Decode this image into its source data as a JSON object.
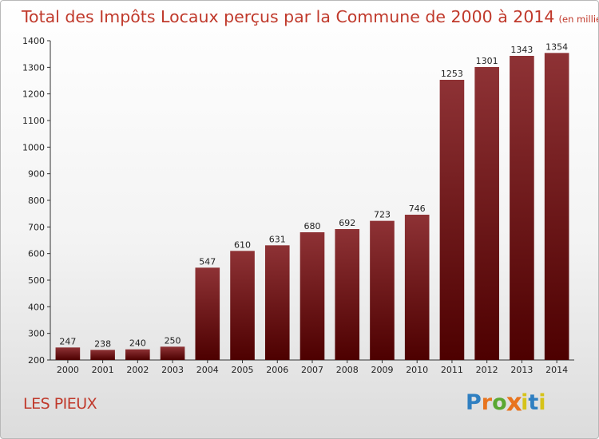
{
  "chart_data": {
    "type": "bar",
    "title": "Total des Impôts Locaux perçus par la Commune de 2000 à 2014",
    "subtitle": "(en milliers d'€)",
    "categories": [
      "2000",
      "2001",
      "2002",
      "2003",
      "2004",
      "2005",
      "2006",
      "2007",
      "2008",
      "2009",
      "2010",
      "2011",
      "2012",
      "2013",
      "2014"
    ],
    "values": [
      247,
      238,
      240,
      250,
      547,
      610,
      631,
      680,
      692,
      723,
      746,
      1253,
      1301,
      1343,
      1354
    ],
    "ylim": [
      200,
      1400
    ],
    "yticks": [
      200,
      300,
      400,
      500,
      600,
      700,
      800,
      900,
      1000,
      1100,
      1200,
      1300,
      1400
    ],
    "xlabel": "",
    "ylabel": "",
    "grid": false,
    "bar_color_top": "#8e3235",
    "bar_color_bottom": "#4d0000"
  },
  "commune_name": "LES PIEUX",
  "logo": {
    "letters": [
      "P",
      "r",
      "o",
      "x",
      "i",
      "t",
      "i"
    ],
    "colors": [
      "#2f7fc1",
      "#e8741e",
      "#5aa832",
      "#e8741e",
      "#d6c319",
      "#2f7fc1",
      "#d6c319"
    ]
  },
  "title_color": "#c0392b"
}
